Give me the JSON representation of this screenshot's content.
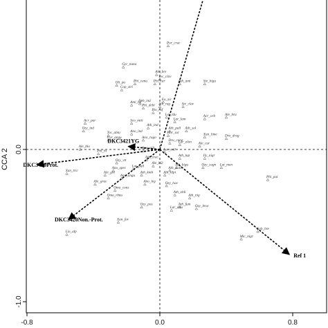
{
  "chart_data": {
    "type": "scatter",
    "xlabel": "",
    "ylabel": "CCA 2",
    "xlim": [
      -0.8,
      1.0
    ],
    "ylim": [
      -1.0,
      1.0
    ],
    "x_ticks": [
      {
        "value": -0.8,
        "label": "-0.8"
      },
      {
        "value": 0.0,
        "label": "0.0"
      },
      {
        "value": 0.8,
        "label": "0.8"
      }
    ],
    "y_ticks": [
      {
        "value": 0.0,
        "label": "0.0"
      },
      {
        "value": -1.0,
        "label": "-1.0"
      }
    ],
    "grid": false,
    "reference_lines": "dashed lines at x=0 and y=0",
    "arrows": [
      {
        "label": "",
        "x": 0.28,
        "y": 1.06
      },
      {
        "label": "DKC3421YG",
        "x": -0.19,
        "y": 0.02
      },
      {
        "label": "DKC3420Prot.",
        "x": -0.74,
        "y": -0.1
      },
      {
        "label": "DKC3420Non.-Prot.",
        "x": -0.55,
        "y": -0.46
      },
      {
        "label": "Ref 1",
        "x": 0.78,
        "y": -0.69
      }
    ],
    "species": [
      {
        "label": "Por_crac",
        "x": 0.05,
        "y": 0.68
      },
      {
        "label": "Gyr_nana",
        "x": -0.22,
        "y": 0.54
      },
      {
        "label": "Ale_bre",
        "x": -0.02,
        "y": 0.49
      },
      {
        "label": "Toc_clav",
        "x": 0.0,
        "y": 0.46
      },
      {
        "label": "Phi_cana",
        "x": -0.15,
        "y": 0.43
      },
      {
        "label": "Phi_car",
        "x": -0.03,
        "y": 0.43
      },
      {
        "label": "Oli_pa",
        "x": -0.26,
        "y": 0.42
      },
      {
        "label": "Ath_ami",
        "x": 0.12,
        "y": 0.43
      },
      {
        "label": "Ste_bigu",
        "x": 0.27,
        "y": 0.43
      },
      {
        "label": "Cop_stri",
        "x": -0.23,
        "y": 0.39
      },
      {
        "label": "Neh_ind",
        "x": -0.12,
        "y": 0.3
      },
      {
        "label": "Eu_sic",
        "x": 0.02,
        "y": 0.31
      },
      {
        "label": "Ami_bif",
        "x": -0.17,
        "y": 0.29
      },
      {
        "label": "Phi_debi",
        "x": -0.1,
        "y": 0.27
      },
      {
        "label": "Ath_rug",
        "x": 0.0,
        "y": 0.28
      },
      {
        "label": "Ste_clav",
        "x": 0.14,
        "y": 0.28
      },
      {
        "label": "Bio_ruf",
        "x": -0.04,
        "y": 0.24
      },
      {
        "label": "Acr_par",
        "x": -0.45,
        "y": 0.17
      },
      {
        "label": "Sco_mitt",
        "x": -0.17,
        "y": 0.17
      },
      {
        "label": "Lat_ldu",
        "x": 0.04,
        "y": 0.21
      },
      {
        "label": "Lar_lam",
        "x": 0.09,
        "y": 0.18
      },
      {
        "label": "Acr_orb",
        "x": 0.27,
        "y": 0.2
      },
      {
        "label": "Ale_bru",
        "x": 0.4,
        "y": 0.21
      },
      {
        "label": "Ozy_ind",
        "x": -0.46,
        "y": 0.12
      },
      {
        "label": "Toc_abtu",
        "x": -0.31,
        "y": 0.09
      },
      {
        "label": "Ath_ind",
        "x": -0.07,
        "y": 0.14
      },
      {
        "label": "Ath_sol",
        "x": 0.16,
        "y": 0.12
      },
      {
        "label": "Ath_pall",
        "x": 0.06,
        "y": 0.12
      },
      {
        "label": "Mor_sol",
        "x": 0.05,
        "y": 0.09
      },
      {
        "label": "Gyr_angu",
        "x": -0.31,
        "y": 0.06
      },
      {
        "label": "Ano_ind",
        "x": -0.17,
        "y": 0.1
      },
      {
        "label": "Ano_rugo",
        "x": -0.1,
        "y": 0.06
      },
      {
        "label": "Dru_cana",
        "x": 0.06,
        "y": 0.04
      },
      {
        "label": "Xan_lime",
        "x": 0.27,
        "y": 0.08
      },
      {
        "label": "Dro_drag",
        "x": 0.4,
        "y": 0.07
      },
      {
        "label": "Ale_blo",
        "x": -0.48,
        "y": 0.0
      },
      {
        "label": "Phi_hi",
        "x": -0.37,
        "y": -0.03
      },
      {
        "label": "Ano_arit",
        "x": -0.1,
        "y": -0.01
      },
      {
        "label": "Lar_elon",
        "x": 0.12,
        "y": 0.03
      },
      {
        "label": "Ale_cur",
        "x": 0.24,
        "y": 0.02
      },
      {
        "label": "Ath_crac",
        "x": -0.08,
        "y": -0.07
      },
      {
        "label": "Ozy_vtt",
        "x": -0.26,
        "y": -0.09
      },
      {
        "label": "Lar_exil",
        "x": 0.03,
        "y": -0.02
      },
      {
        "label": "Ath_tup",
        "x": 0.12,
        "y": -0.06
      },
      {
        "label": "Ily_nigr",
        "x": 0.27,
        "y": -0.06
      },
      {
        "label": "Xan_tric",
        "x": -0.56,
        "y": -0.16
      },
      {
        "label": "Ano_spec",
        "x": -0.28,
        "y": -0.14
      },
      {
        "label": "Lat_pall",
        "x": -0.16,
        "y": -0.13
      },
      {
        "label": "Ale_bl2",
        "x": -0.04,
        "y": -0.11
      },
      {
        "label": "Ath_bigu",
        "x": 0.1,
        "y": -0.12
      },
      {
        "label": "Ozy_cagn",
        "x": 0.26,
        "y": -0.12
      },
      {
        "label": "Lat_men",
        "x": 0.37,
        "y": -0.12
      },
      {
        "label": "Ale_grac",
        "x": -0.39,
        "y": -0.23
      },
      {
        "label": "Ale_gre",
        "x": -0.33,
        "y": -0.17
      },
      {
        "label": "Ami_angu",
        "x": -0.23,
        "y": -0.19
      },
      {
        "label": "Ath_kmb",
        "x": -0.11,
        "y": -0.17
      },
      {
        "label": "Ath_ldpi",
        "x": 0.03,
        "y": -0.17
      },
      {
        "label": "Ath_scan",
        "x": 0.06,
        "y": -0.14
      },
      {
        "label": "Ano_leg",
        "x": -0.09,
        "y": -0.23
      },
      {
        "label": "Ozy_hoe",
        "x": 0.04,
        "y": -0.24
      },
      {
        "label": "Phi_pal",
        "x": 0.65,
        "y": -0.2
      },
      {
        "label": "Oma_cons",
        "x": -0.27,
        "y": -0.27
      },
      {
        "label": "Oma_rhnu",
        "x": -0.31,
        "y": -0.32
      },
      {
        "label": "Ath_obli",
        "x": 0.09,
        "y": -0.3
      },
      {
        "label": "Ath_nig",
        "x": 0.18,
        "y": -0.32
      },
      {
        "label": "Ath_fum",
        "x": 0.12,
        "y": -0.38
      },
      {
        "label": "Ozy_brac",
        "x": 0.22,
        "y": -0.39
      },
      {
        "label": "Ozy_pos",
        "x": -0.11,
        "y": -0.38
      },
      {
        "label": "Lar_dilu",
        "x": 0.07,
        "y": -0.4
      },
      {
        "label": "Xan_for",
        "x": -0.25,
        "y": -0.48
      },
      {
        "label": "Lio_alp",
        "x": -0.56,
        "y": -0.56
      },
      {
        "label": "Mic_nigr",
        "x": 0.49,
        "y": -0.59
      },
      {
        "label": "Gob_bre",
        "x": 0.59,
        "y": -0.54
      }
    ]
  }
}
